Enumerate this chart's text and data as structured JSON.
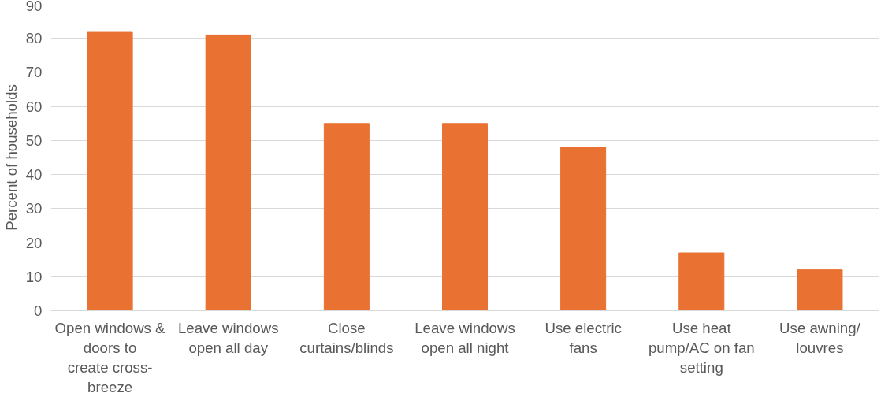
{
  "chart_data": {
    "type": "bar",
    "ylabel": "Percent of households",
    "categories": [
      "Open windows & doors to create cross-breeze",
      "Leave windows open all day",
      "Close curtains/blinds",
      "Leave windows open all night",
      "Use electric fans",
      "Use heat pump/AC on fan setting",
      "Use awning/ louvres"
    ],
    "values": [
      82,
      81,
      55,
      55,
      48,
      17,
      12
    ],
    "color": "#e97132",
    "ylim": [
      0,
      90
    ],
    "yticks": [
      0,
      10,
      20,
      30,
      40,
      50,
      60,
      70,
      80,
      90
    ],
    "grid": "y"
  }
}
